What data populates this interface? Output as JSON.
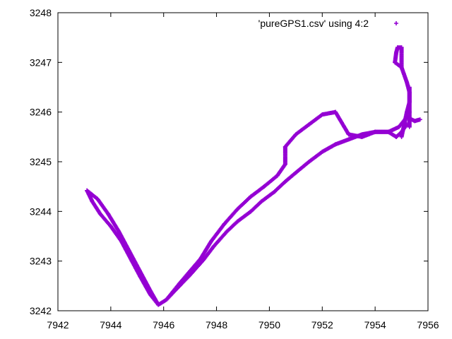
{
  "chart_data": {
    "type": "scatter",
    "title": "",
    "xlabel": "",
    "ylabel": "",
    "xlim": [
      7942,
      7956
    ],
    "ylim": [
      3242,
      3248
    ],
    "xticks": [
      "7942",
      "7944",
      "7946",
      "7948",
      "7950",
      "7952",
      "7954",
      "7956"
    ],
    "yticks": [
      "3242",
      "3243",
      "3244",
      "3245",
      "3246",
      "3247",
      "3248"
    ],
    "grid": false,
    "legend_position": "top-right",
    "marker": "+",
    "series": [
      {
        "name": "'pureGPS1.csv' using 4:2",
        "color": "#9400d3",
        "paths": [
          [
            [
              7943.1,
              3244.42
            ],
            [
              7943.3,
              3244.2
            ],
            [
              7943.6,
              3243.95
            ],
            [
              7944.0,
              3243.7
            ],
            [
              7944.4,
              3243.4
            ],
            [
              7944.8,
              3243.0
            ],
            [
              7945.1,
              3242.7
            ],
            [
              7945.5,
              3242.32
            ],
            [
              7945.8,
              3242.12
            ],
            [
              7946.1,
              3242.22
            ],
            [
              7946.6,
              3242.5
            ],
            [
              7947.0,
              3242.72
            ],
            [
              7947.5,
              3243.02
            ],
            [
              7947.9,
              3243.3
            ],
            [
              7948.4,
              3243.6
            ],
            [
              7948.8,
              3243.8
            ],
            [
              7949.3,
              3244.0
            ],
            [
              7949.7,
              3244.2
            ],
            [
              7950.2,
              3244.4
            ],
            [
              7950.6,
              3244.6
            ],
            [
              7951.0,
              3244.78
            ],
            [
              7951.5,
              3245.0
            ],
            [
              7952.0,
              3245.2
            ],
            [
              7952.5,
              3245.35
            ],
            [
              7953.0,
              3245.45
            ],
            [
              7953.5,
              3245.55
            ],
            [
              7954.0,
              3245.6
            ],
            [
              7954.5,
              3245.6
            ],
            [
              7954.9,
              3245.7
            ],
            [
              7955.2,
              3245.9
            ],
            [
              7955.5,
              3245.82
            ],
            [
              7955.7,
              3245.85
            ]
          ],
          [
            [
              7955.3,
              3245.7
            ],
            [
              7955.3,
              3246.0
            ],
            [
              7955.3,
              3246.4
            ],
            [
              7955.2,
              3246.6
            ],
            [
              7955.0,
              3246.9
            ],
            [
              7955.0,
              3247.3
            ],
            [
              7954.85,
              3247.3
            ],
            [
              7954.8,
              3247.2
            ],
            [
              7954.75,
              3247.0
            ],
            [
              7955.0,
              3246.9
            ]
          ],
          [
            [
              7955.0,
              3245.5
            ],
            [
              7955.2,
              3246.0
            ],
            [
              7955.3,
              3246.2
            ],
            [
              7955.3,
              3246.5
            ]
          ],
          [
            [
              7945.8,
              3242.12
            ],
            [
              7945.5,
              3242.4
            ],
            [
              7945.1,
              3242.8
            ],
            [
              7944.7,
              3243.2
            ],
            [
              7944.3,
              3243.6
            ],
            [
              7943.9,
              3243.95
            ],
            [
              7943.5,
              3244.25
            ],
            [
              7943.1,
              3244.42
            ]
          ],
          [
            [
              7946.1,
              3242.22
            ],
            [
              7946.6,
              3242.55
            ],
            [
              7947.0,
              3242.8
            ],
            [
              7947.4,
              3243.05
            ],
            [
              7947.8,
              3243.4
            ],
            [
              7948.3,
              3243.75
            ],
            [
              7948.8,
              3244.05
            ],
            [
              7949.3,
              3244.3
            ],
            [
              7949.8,
              3244.5
            ],
            [
              7950.3,
              3244.72
            ],
            [
              7950.6,
              3244.95
            ],
            [
              7950.6,
              3245.3
            ],
            [
              7951.0,
              3245.55
            ],
            [
              7951.5,
              3245.75
            ],
            [
              7952.0,
              3245.95
            ],
            [
              7952.5,
              3246.0
            ],
            [
              7953.0,
              3245.55
            ],
            [
              7953.5,
              3245.5
            ],
            [
              7954.0,
              3245.6
            ],
            [
              7954.5,
              3245.6
            ],
            [
              7954.8,
              3245.5
            ],
            [
              7955.0,
              3245.6
            ],
            [
              7955.2,
              3245.75
            ]
          ]
        ]
      }
    ]
  }
}
